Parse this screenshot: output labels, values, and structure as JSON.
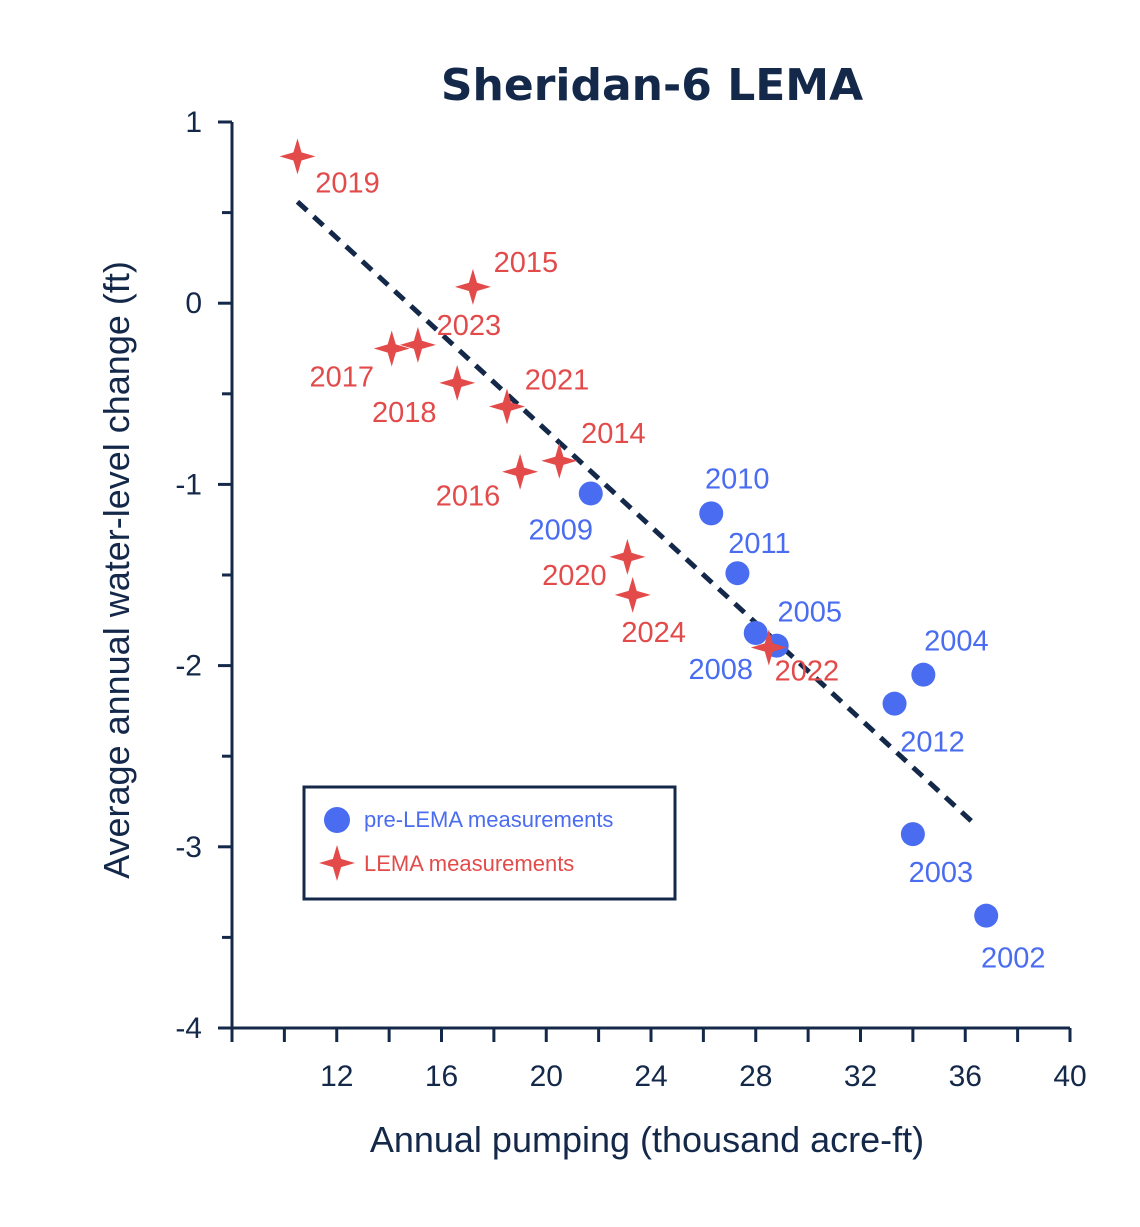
{
  "chart_data": {
    "type": "scatter",
    "title": "Sheridan-6 LEMA",
    "xlabel": "Annual pumping (thousand acre-ft)",
    "ylabel": "Average annual water-level change (ft)",
    "xlim": [
      8,
      40
    ],
    "ylim": [
      -4,
      1
    ],
    "xticks": [
      12,
      16,
      20,
      24,
      28,
      32,
      36,
      40
    ],
    "yticks": [
      1,
      0,
      -1,
      -2,
      -3,
      -4
    ],
    "grid": false,
    "legend_position": "bottom-left",
    "series": [
      {
        "name": "pre-LEMA measurements",
        "marker": "circle",
        "color": "#4a6cf0",
        "points": [
          {
            "label": "2002",
            "x": 36.8,
            "y": -3.38
          },
          {
            "label": "2003",
            "x": 34.0,
            "y": -2.93
          },
          {
            "label": "2004",
            "x": 34.4,
            "y": -2.05
          },
          {
            "label": "2005",
            "x": 28.8,
            "y": -1.89
          },
          {
            "label": "2008",
            "x": 28.0,
            "y": -1.82
          },
          {
            "label": "2009",
            "x": 21.7,
            "y": -1.05
          },
          {
            "label": "2010",
            "x": 26.3,
            "y": -1.16
          },
          {
            "label": "2011",
            "x": 27.3,
            "y": -1.49
          },
          {
            "label": "2012",
            "x": 33.3,
            "y": -2.21
          }
        ]
      },
      {
        "name": "LEMA measurements",
        "marker": "star",
        "color": "#e34b4b",
        "points": [
          {
            "label": "2014",
            "x": 20.5,
            "y": -0.87
          },
          {
            "label": "2015",
            "x": 17.2,
            "y": 0.09
          },
          {
            "label": "2016",
            "x": 19.0,
            "y": -0.93
          },
          {
            "label": "2017",
            "x": 14.1,
            "y": -0.25
          },
          {
            "label": "2018",
            "x": 16.6,
            "y": -0.44
          },
          {
            "label": "2019",
            "x": 10.5,
            "y": 0.81
          },
          {
            "label": "2020",
            "x": 23.1,
            "y": -1.4
          },
          {
            "label": "2021",
            "x": 18.5,
            "y": -0.57
          },
          {
            "label": "2022",
            "x": 28.5,
            "y": -1.9
          },
          {
            "label": "2023",
            "x": 15.1,
            "y": -0.23
          },
          {
            "label": "2024",
            "x": 23.3,
            "y": -1.61
          }
        ]
      }
    ],
    "trendline": {
      "style": "dashed",
      "color": "#14284a",
      "x": [
        10.5,
        36.4
      ],
      "y": [
        0.56,
        -2.88
      ]
    }
  }
}
